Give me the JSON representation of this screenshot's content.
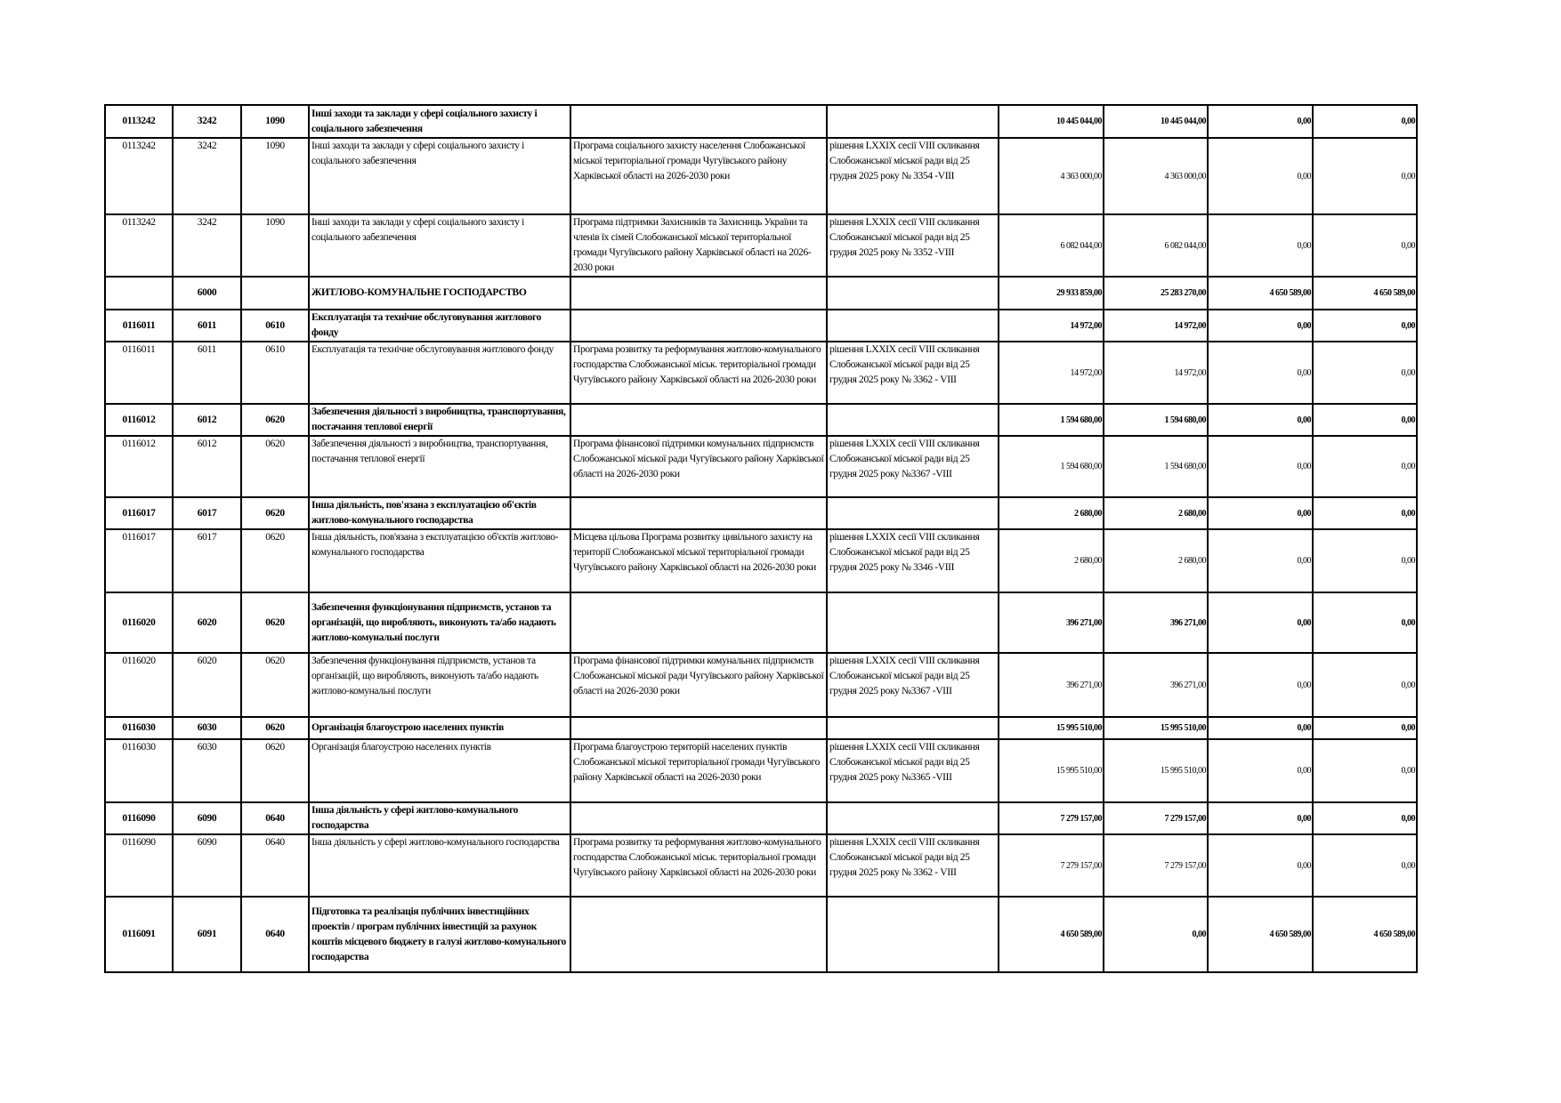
{
  "rows": [
    {
      "summary": true,
      "program_code": "0113242",
      "kvk": "3242",
      "kfkb": "1090",
      "name": "Інші заходи та заклади у сфері соціального захисту і соціального забезпечення",
      "program": "",
      "decision": "",
      "total": "10 445 044,00",
      "general": "10 445 044,00",
      "special": "0,00",
      "development": "0,00"
    },
    {
      "summary": false,
      "program_code": "0113242",
      "kvk": "3242",
      "kfkb": "1090",
      "name": "Інші заходи та заклади у сфері соціального захисту і соціального забезпечення",
      "program": "Програма соціального захисту населення Слобожанської міської територіальної громади Чугуївського району Харківської області на 2026-2030 роки",
      "decision": "рішення LXXIX сесії VIII скликання Слобожанської міської ради від 25 грудня 2025 року № 3354 -VIII",
      "total": "4 363 000,00",
      "general": "4 363 000,00",
      "special": "0,00",
      "development": "0,00"
    },
    {
      "summary": false,
      "program_code": "0113242",
      "kvk": "3242",
      "kfkb": "1090",
      "name": "Інші заходи та заклади у сфері соціального захисту і соціального забезпечення",
      "program": "Програма підтримки Захисників та Захисниць України та членів їх сімей Слобожанської міської територіальної громади Чугуївського району Харківської області на 2026-2030 роки",
      "decision": "рішення LXXIX сесії VIII скликання Слобожанської міської ради від 25 грудня 2025 року № 3352 -VIII",
      "total": "6 082 044,00",
      "general": "6 082 044,00",
      "special": "0,00",
      "development": "0,00"
    },
    {
      "summary": true,
      "program_code": "",
      "kvk": "6000",
      "kfkb": "",
      "name": "ЖИТЛОВО-КОМУНАЛЬНЕ ГОСПОДАРСТВО",
      "program": "",
      "decision": "",
      "total": "29 933 859,00",
      "general": "25 283 270,00",
      "special": "4 650 589,00",
      "development": "4 650 589,00"
    },
    {
      "summary": true,
      "program_code": "0116011",
      "kvk": "6011",
      "kfkb": "0610",
      "name": "Експлуатація та технічне обслуговування житлового фонду",
      "program": "",
      "decision": "",
      "total": "14 972,00",
      "general": "14 972,00",
      "special": "0,00",
      "development": "0,00"
    },
    {
      "summary": false,
      "program_code": "0116011",
      "kvk": "6011",
      "kfkb": "0610",
      "name": "Експлуатація та технічне обслуговування житлового фонду",
      "program": "Програма розвитку та реформування житлово-комунального господарства Слобожанської міськ. територіальної громади Чугуївського району Харківської області на 2026-2030 роки",
      "decision": "рішення LXXIX сесії VIII скликання Слобожанської міської ради від 25 грудня 2025 року № 3362 - VIII",
      "total": "14 972,00",
      "general": "14 972,00",
      "special": "0,00",
      "development": "0,00"
    },
    {
      "summary": true,
      "program_code": "0116012",
      "kvk": "6012",
      "kfkb": "0620",
      "name": "Забезпечення діяльності з виробництва, транспортування, постачання теплової енергії",
      "program": "",
      "decision": "",
      "total": "1 594 680,00",
      "general": "1 594 680,00",
      "special": "0,00",
      "development": "0,00"
    },
    {
      "summary": false,
      "program_code": "0116012",
      "kvk": "6012",
      "kfkb": "0620",
      "name": "Забезпечення діяльності з виробництва, транспортування, постачання теплової енергії",
      "program": "Програма фінансової підтримки комунальних підприємств Слобожанської міської ради Чугуївського району Харківської області на 2026-2030 роки",
      "decision": "рішення LXXIX сесії VIII скликання Слобожанської міської ради від 25 грудня 2025 року №3367 -VIII",
      "total": "1 594 680,00",
      "general": "1 594 680,00",
      "special": "0,00",
      "development": "0,00"
    },
    {
      "summary": true,
      "program_code": "0116017",
      "kvk": "6017",
      "kfkb": "0620",
      "name": "Інша діяльність, пов'язана з експлуатацією об'єктів житлово-комунального господарства",
      "program": "",
      "decision": "",
      "total": "2 680,00",
      "general": "2 680,00",
      "special": "0,00",
      "development": "0,00"
    },
    {
      "summary": false,
      "program_code": "0116017",
      "kvk": "6017",
      "kfkb": "0620",
      "name": "Інша діяльність, пов'язана з експлуатацією об'єктів житлово-комунального господарства",
      "program": "Місцева цільова Програма розвитку цивільного захисту на території Слобожанської міської територіальної громади Чугуївського району Харківської області на 2026-2030 роки",
      "decision": "рішення LXXIX сесії VIII скликання Слобожанської міської ради від 25 грудня 2025 року № 3346 -VIII",
      "total": "2 680,00",
      "general": "2 680,00",
      "special": "0,00",
      "development": "0,00"
    },
    {
      "summary": true,
      "program_code": "0116020",
      "kvk": "6020",
      "kfkb": "0620",
      "name": "Забезпечення функціонування підприємств, установ та організацій, що виробляють, виконують та/або надають житлово-комунальні послуги",
      "program": "",
      "decision": "",
      "total": "396 271,00",
      "general": "396 271,00",
      "special": "0,00",
      "development": "0,00"
    },
    {
      "summary": false,
      "program_code": "0116020",
      "kvk": "6020",
      "kfkb": "0620",
      "name": "Забезпечення функціонування підприємств, установ та організацій, що виробляють, виконують та/або надають житлово-комунальні послуги",
      "program": "Програма фінансової підтримки комунальних підприємств Слобожанської міської ради Чугуївського району Харківської області на 2026-2030 роки",
      "decision": "рішення LXXIX сесії VIII скликання Слобожанської міської ради від 25 грудня 2025 року №3367 -VIII",
      "total": "396 271,00",
      "general": "396 271,00",
      "special": "0,00",
      "development": "0,00"
    },
    {
      "summary": true,
      "program_code": "0116030",
      "kvk": "6030",
      "kfkb": "0620",
      "name": "Організація благоустрою населених пунктів",
      "program": "",
      "decision": "",
      "total": "15 995 510,00",
      "general": "15 995 510,00",
      "special": "0,00",
      "development": "0,00"
    },
    {
      "summary": false,
      "program_code": "0116030",
      "kvk": "6030",
      "kfkb": "0620",
      "name": "Організація благоустрою населених пунктів",
      "program": "Програма благоустрою територій населених пунктів Слобожанської міської територіальної громади Чугуївського району Харківської області на 2026-2030 роки",
      "decision": "рішення LXXIX сесії VIII скликання Слобожанської міської ради від 25 грудня 2025 року №3365 -VIII",
      "total": "15 995 510,00",
      "general": "15 995 510,00",
      "special": "0,00",
      "development": "0,00"
    },
    {
      "summary": true,
      "program_code": "0116090",
      "kvk": "6090",
      "kfkb": "0640",
      "name": "Інша діяльність у сфері житлово-комунального господарства",
      "program": "",
      "decision": "",
      "total": "7 279 157,00",
      "general": "7 279 157,00",
      "special": "0,00",
      "development": "0,00"
    },
    {
      "summary": false,
      "program_code": "0116090",
      "kvk": "6090",
      "kfkb": "0640",
      "name": "Інша діяльність у сфері житлово-комунального господарства",
      "program": "Програма розвитку та реформування житлово-комунального господарства Слобожанської міськ. територіальної громади Чугуївського району Харківської області на 2026-2030 роки",
      "decision": "рішення LXXIX сесії VIII скликання Слобожанської міської ради від 25 грудня 2025 року № 3362 - VIII",
      "total": "7 279 157,00",
      "general": "7 279 157,00",
      "special": "0,00",
      "development": "0,00"
    },
    {
      "summary": true,
      "program_code": "0116091",
      "kvk": "6091",
      "kfkb": "0640",
      "name": "Підготовка та реалізація публічних інвестиційних проектів / програм публічних інвестицій за рахунок коштів місцевого бюджету в галузі житлово-комунального господарства",
      "program": "",
      "decision": "",
      "total": "4 650 589,00",
      "general": "0,00",
      "special": "4 650 589,00",
      "development": "4 650 589,00"
    }
  ]
}
